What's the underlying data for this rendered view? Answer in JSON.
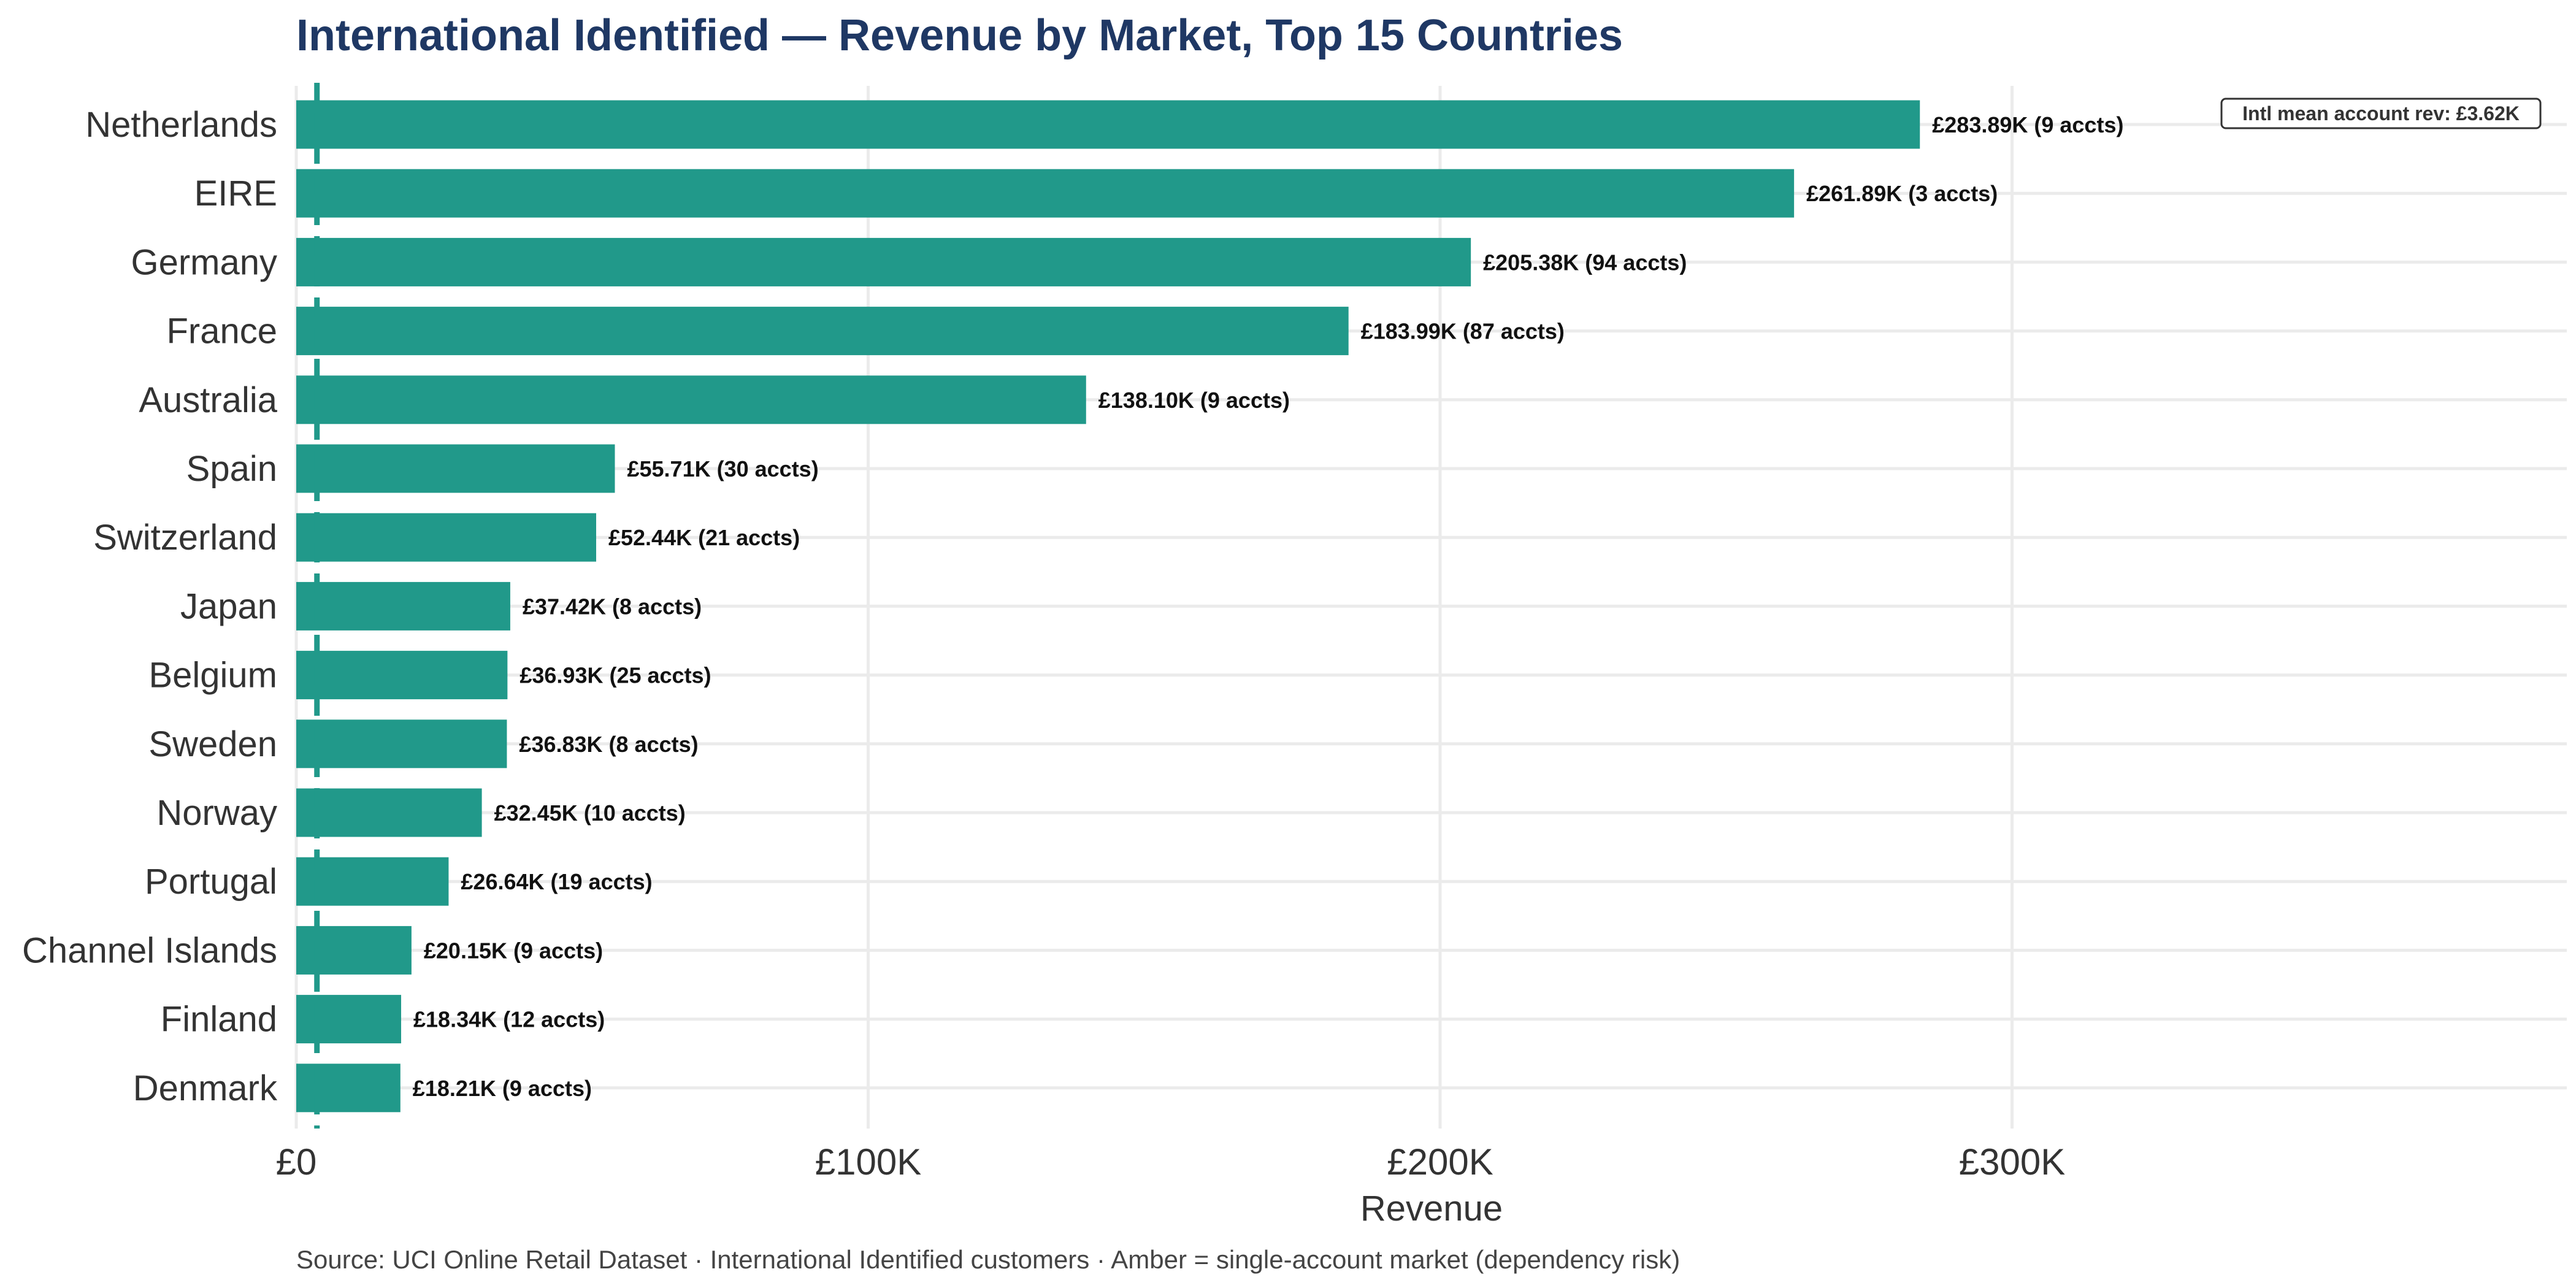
{
  "chart_data": {
    "type": "bar",
    "orientation": "horizontal",
    "title": "International Identified — Revenue by Market, Top 15 Countries",
    "xlabel": "Revenue",
    "ylabel": "",
    "xlim": [
      0,
      397000
    ],
    "x_ticks": [
      0,
      100000,
      200000,
      300000
    ],
    "x_tick_labels": [
      "£0",
      "£100K",
      "£200K",
      "£300K"
    ],
    "categories": [
      "Netherlands",
      "EIRE",
      "Germany",
      "France",
      "Australia",
      "Spain",
      "Switzerland",
      "Japan",
      "Belgium",
      "Sweden",
      "Norway",
      "Portugal",
      "Channel Islands",
      "Finland",
      "Denmark"
    ],
    "values": [
      283890,
      261890,
      205380,
      183990,
      138100,
      55710,
      52440,
      37420,
      36930,
      36830,
      32450,
      26640,
      20150,
      18340,
      18210
    ],
    "value_labels": [
      "£283.89K (9 accts)",
      "£261.89K (3 accts)",
      "£205.38K (94 accts)",
      "£183.99K (87 accts)",
      "£138.10K (9 accts)",
      "£55.71K (30 accts)",
      "£52.44K (21 accts)",
      "£37.42K (8 accts)",
      "£36.93K (25 accts)",
      "£36.83K (8 accts)",
      "£32.45K (10 accts)",
      "£26.64K (19 accts)",
      "£20.15K (9 accts)",
      "£18.34K (12 accts)",
      "£18.21K (9 accts)"
    ],
    "bar_color": "#21998a",
    "reference_line": {
      "value": 3620,
      "style": "dashed",
      "color": "#21998a"
    },
    "annotation": "Intl mean account rev: £3.62K",
    "annotation_position": "top-right",
    "grid": true,
    "caption": "Source: UCI Online Retail Dataset · International Identified customers · Amber = single-account market (dependency risk)"
  }
}
